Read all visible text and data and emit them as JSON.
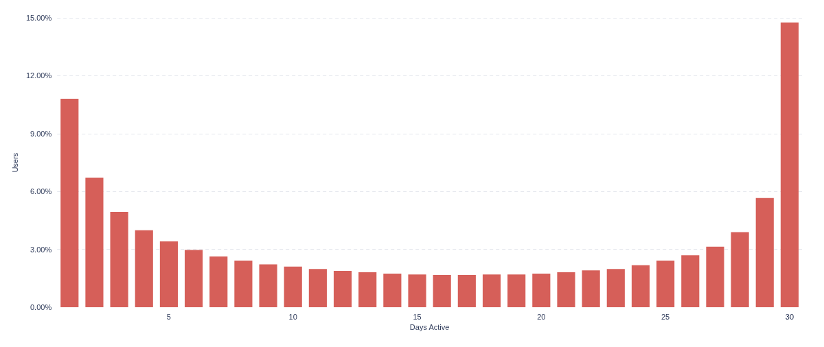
{
  "chart_data": {
    "type": "bar",
    "xlabel": "Days Active",
    "ylabel": "Users",
    "x": [
      1,
      2,
      3,
      4,
      5,
      6,
      7,
      8,
      9,
      10,
      11,
      12,
      13,
      14,
      15,
      16,
      17,
      18,
      19,
      20,
      21,
      22,
      23,
      24,
      25,
      26,
      27,
      28,
      29,
      30
    ],
    "values": [
      10.81,
      6.72,
      4.94,
      3.99,
      3.41,
      2.97,
      2.63,
      2.42,
      2.22,
      2.11,
      1.98,
      1.88,
      1.81,
      1.74,
      1.7,
      1.67,
      1.67,
      1.7,
      1.7,
      1.74,
      1.81,
      1.91,
      1.98,
      2.18,
      2.42,
      2.69,
      3.14,
      3.89,
      5.66,
      14.76
    ],
    "color": "#d65f59",
    "xlim": [
      0.5,
      30.5
    ],
    "xticks": [
      5,
      10,
      15,
      20,
      25,
      30
    ],
    "ylim": [
      0,
      15
    ],
    "yticks": [
      {
        "value": 0,
        "label": "0.00%"
      },
      {
        "value": 3,
        "label": "3.00%"
      },
      {
        "value": 6,
        "label": "6.00%"
      },
      {
        "value": 9,
        "label": "9.00%"
      },
      {
        "value": 12,
        "label": "12.00%"
      },
      {
        "value": 15,
        "label": "15.00%"
      }
    ],
    "grid": "y"
  }
}
